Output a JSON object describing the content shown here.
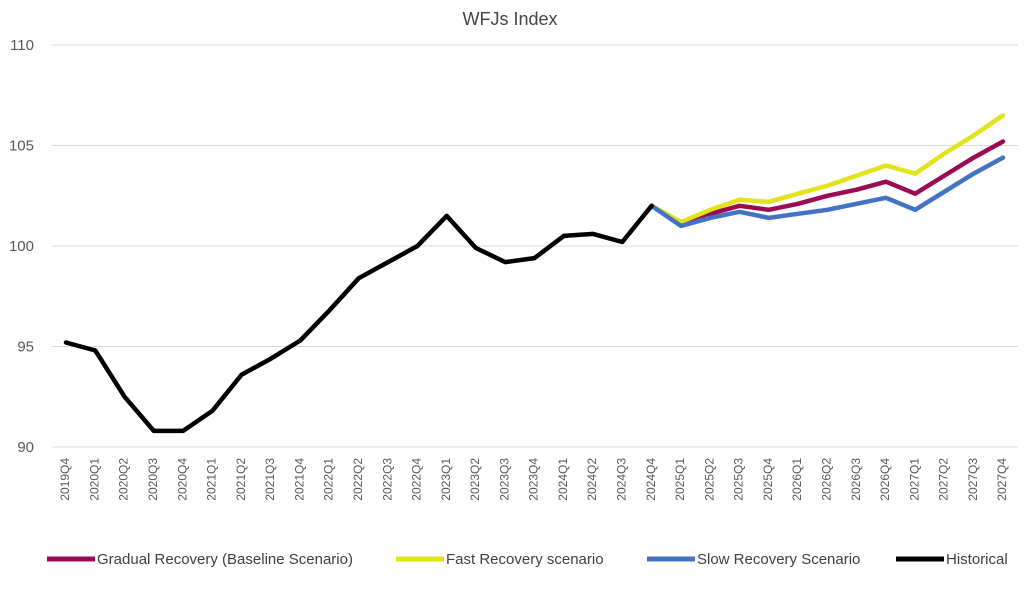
{
  "chart_data": {
    "type": "line",
    "title": "WFJs Index",
    "xlabel": "",
    "ylabel": "",
    "ylim": [
      90,
      110
    ],
    "yticks": [
      90,
      95,
      100,
      105,
      110
    ],
    "grid": true,
    "legend_position": "bottom",
    "categories": [
      "2019Q4",
      "2020Q1",
      "2020Q2",
      "2020Q3",
      "2020Q4",
      "2021Q1",
      "2021Q2",
      "2021Q3",
      "2021Q4",
      "2022Q1",
      "2022Q2",
      "2022Q3",
      "2022Q4",
      "2023Q1",
      "2023Q2",
      "2023Q3",
      "2023Q4",
      "2024Q1",
      "2024Q2",
      "2024Q3",
      "2024Q4",
      "2025Q1",
      "2025Q2",
      "2025Q3",
      "2025Q4",
      "2026Q1",
      "2026Q2",
      "2026Q3",
      "2026Q4",
      "2027Q1",
      "2027Q2",
      "2027Q3",
      "2027Q4"
    ],
    "series": [
      {
        "name": "Gradual Recovery (Baseline Scenario)",
        "color": "#9b0b54",
        "values": [
          null,
          null,
          null,
          null,
          null,
          null,
          null,
          null,
          null,
          null,
          null,
          null,
          null,
          null,
          null,
          null,
          null,
          null,
          null,
          null,
          102.0,
          101.1,
          101.6,
          102.0,
          101.8,
          102.1,
          102.5,
          102.8,
          103.2,
          102.6,
          103.5,
          104.4,
          105.2
        ]
      },
      {
        "name": "Fast Recovery scenario",
        "color": "#e3e31a",
        "values": [
          null,
          null,
          null,
          null,
          null,
          null,
          null,
          null,
          null,
          null,
          null,
          null,
          null,
          null,
          null,
          null,
          null,
          null,
          null,
          null,
          102.0,
          101.2,
          101.8,
          102.3,
          102.2,
          102.6,
          103.0,
          103.5,
          104.0,
          103.6,
          104.6,
          105.5,
          106.5
        ]
      },
      {
        "name": "Slow Recovery Scenario",
        "color": "#4472c4",
        "values": [
          null,
          null,
          null,
          null,
          null,
          null,
          null,
          null,
          null,
          null,
          null,
          null,
          null,
          null,
          null,
          null,
          null,
          null,
          null,
          null,
          102.0,
          101.0,
          101.4,
          101.7,
          101.4,
          101.6,
          101.8,
          102.1,
          102.4,
          101.8,
          102.7,
          103.6,
          104.4
        ]
      },
      {
        "name": "Historical",
        "color": "#000000",
        "values": [
          95.2,
          94.8,
          92.5,
          90.8,
          90.8,
          91.8,
          93.6,
          94.4,
          95.3,
          96.8,
          98.4,
          99.2,
          100.0,
          101.5,
          99.9,
          99.2,
          99.4,
          100.5,
          100.6,
          100.2,
          102.0,
          null,
          null,
          null,
          null,
          null,
          null,
          null,
          null,
          null,
          null,
          null,
          null
        ]
      }
    ]
  }
}
